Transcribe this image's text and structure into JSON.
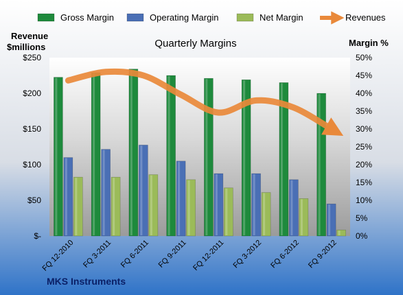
{
  "chart_data": {
    "type": "bar",
    "title": "Quarterly Margins",
    "footer": "MKS Instruments",
    "left_axis": {
      "label_line1": "Revenue",
      "label_line2": "$millions",
      "ylim": [
        0,
        250
      ],
      "ticks": [
        0,
        50,
        100,
        150,
        200,
        250
      ],
      "tick_labels": [
        "$-",
        "$50",
        "$100",
        "$150",
        "$200",
        "$250"
      ]
    },
    "right_axis": {
      "label": "Margin %",
      "ylim": [
        0,
        50
      ],
      "ticks": [
        0,
        5,
        10,
        15,
        20,
        25,
        30,
        35,
        40,
        45,
        50
      ],
      "tick_labels": [
        "0%",
        "5%",
        "10%",
        "15%",
        "20%",
        "25%",
        "30%",
        "35%",
        "40%",
        "45%",
        "50%"
      ]
    },
    "categories": [
      "FQ 12-2010",
      "FQ 3-2011",
      "FQ 6-2011",
      "FQ 9-2011",
      "FQ 12-2011",
      "FQ 3-2012",
      "FQ 6-2012",
      "FQ 9-2012"
    ],
    "series": [
      {
        "name": "Gross Margin",
        "kind": "bar",
        "axis": "right",
        "color": "#1e8a3c",
        "values": [
          44.5,
          45.8,
          46.8,
          45.0,
          44.2,
          43.8,
          43.0,
          40.0
        ]
      },
      {
        "name": "Operating Margin",
        "kind": "bar",
        "axis": "right",
        "color": "#4a6fb5",
        "values": [
          22.0,
          24.3,
          25.5,
          21.0,
          17.5,
          17.5,
          15.8,
          9.0
        ]
      },
      {
        "name": "Net Margin",
        "kind": "bar",
        "axis": "right",
        "color": "#9bbb59",
        "values": [
          16.5,
          16.5,
          17.2,
          15.8,
          13.5,
          12.2,
          10.5,
          1.7
        ]
      },
      {
        "name": "Revenues",
        "kind": "line",
        "axis": "left",
        "color": "#e9893a",
        "values": [
          218,
          230,
          225,
          198,
          173,
          190,
          180,
          150
        ]
      }
    ],
    "legend_position": "top",
    "grid": false
  }
}
